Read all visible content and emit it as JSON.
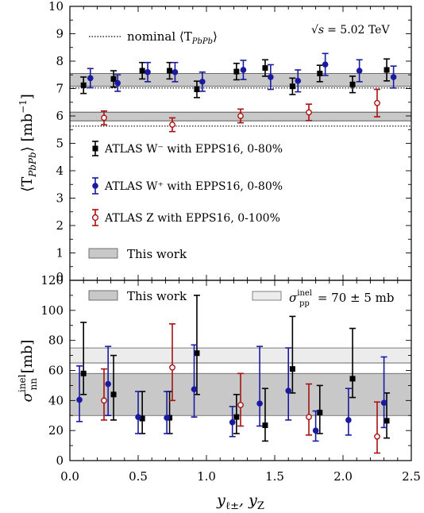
{
  "chart_data": [
    {
      "type": "scatter",
      "panel": "top",
      "ylabel": "⟨T_PbPb⟩ [mb⁻¹]",
      "ylim": [
        0,
        10
      ],
      "yticks": [
        0,
        1,
        2,
        3,
        4,
        5,
        6,
        7,
        8,
        9,
        10
      ],
      "xlim": [
        0,
        2.5
      ],
      "annotation": "√s = 5.02 TeV",
      "nominal": {
        "label": "nominal ⟨T_PbPb⟩",
        "band_value": 7.02,
        "line_value": 5.63
      },
      "bands": [
        {
          "label": "This work",
          "low": 7.08,
          "high": 7.55,
          "center": 7.32
        },
        {
          "label": "This work",
          "low": 5.82,
          "high": 6.14,
          "center": 5.98
        }
      ],
      "legend_placement": "left",
      "series": [
        {
          "name": "ATLAS W⁻ with EPPS16, 0-80%",
          "color": "#000000",
          "marker": "square",
          "x": [
            0.1,
            0.32,
            0.53,
            0.73,
            0.93,
            1.22,
            1.43,
            1.63,
            1.83,
            2.07,
            2.32
          ],
          "y": [
            7.12,
            7.35,
            7.65,
            7.65,
            6.97,
            7.62,
            7.75,
            7.08,
            7.55,
            7.15,
            7.68
          ],
          "err": [
            0.3,
            0.3,
            0.3,
            0.3,
            0.3,
            0.3,
            0.3,
            0.3,
            0.3,
            0.3,
            0.4
          ]
        },
        {
          "name": "ATLAS W⁺ with EPPS16, 0-80%",
          "color": "#1a1aa0",
          "marker": "circle",
          "x": [
            0.15,
            0.35,
            0.57,
            0.77,
            0.97,
            1.27,
            1.47,
            1.67,
            1.87,
            2.12,
            2.37
          ],
          "y": [
            7.38,
            7.2,
            7.6,
            7.6,
            7.25,
            7.68,
            7.42,
            7.28,
            7.88,
            7.65,
            7.42
          ],
          "err": [
            0.35,
            0.3,
            0.35,
            0.35,
            0.35,
            0.35,
            0.45,
            0.4,
            0.4,
            0.4,
            0.4
          ]
        },
        {
          "name": "ATLAS Z with EPPS16, 0-100%",
          "color": "#aa1111",
          "marker": "open-circle",
          "x": [
            0.25,
            0.75,
            1.25,
            1.75,
            2.25
          ],
          "y": [
            5.93,
            5.68,
            6.0,
            6.13,
            6.47
          ],
          "err": [
            0.25,
            0.25,
            0.25,
            0.3,
            0.5
          ]
        }
      ]
    },
    {
      "type": "scatter",
      "panel": "bottom",
      "ylabel": "σ_nn^inel [mb]",
      "xlabel": "y_ℓ±, y_Z",
      "ylim": [
        0,
        120
      ],
      "yticks": [
        0,
        20,
        40,
        60,
        80,
        100,
        120
      ],
      "xlim": [
        0,
        2.5
      ],
      "xticks": [
        0.0,
        0.5,
        1.0,
        1.5,
        2.0,
        2.5
      ],
      "bands": [
        {
          "label": "This work",
          "low": 30,
          "high": 58,
          "center": 44,
          "fill": "#c8c8c8"
        },
        {
          "label": "σ_pp^inel = 70 ± 5 mb",
          "low": 65,
          "high": 75,
          "center": 70,
          "fill": "#ececec"
        }
      ],
      "legend_placement": "top",
      "series": [
        {
          "name": "ATLAS W⁻ with EPPS16, 0-80%",
          "color": "#000000",
          "marker": "square",
          "x": [
            0.1,
            0.32,
            0.53,
            0.73,
            0.93,
            1.22,
            1.43,
            1.63,
            1.83,
            2.07,
            2.32
          ],
          "y": [
            58,
            44,
            28,
            28.5,
            71.5,
            29,
            23.5,
            61,
            32,
            54.5,
            26.5
          ],
          "lo": [
            44,
            27,
            18,
            18,
            44,
            18,
            13,
            45,
            18,
            42,
            15
          ],
          "hi": [
            92,
            70,
            46,
            46,
            110,
            44,
            48,
            96,
            50,
            88,
            45
          ]
        },
        {
          "name": "ATLAS W⁺ with EPPS16, 0-80%",
          "color": "#1a1aa0",
          "marker": "circle",
          "x": [
            0.07,
            0.28,
            0.5,
            0.71,
            0.91,
            1.19,
            1.39,
            1.6,
            1.8,
            2.04,
            2.3
          ],
          "y": [
            40.5,
            51,
            29,
            28.5,
            47.5,
            25.5,
            38,
            46.5,
            20,
            27,
            38.5
          ],
          "lo": [
            26,
            30,
            18,
            18,
            29,
            16,
            23,
            27,
            13,
            17,
            22
          ],
          "hi": [
            63,
            76,
            46,
            46,
            77,
            36,
            76,
            75,
            33,
            48,
            69
          ]
        },
        {
          "name": "ATLAS Z with EPPS16, 0-100%",
          "color": "#aa1111",
          "marker": "open-circle",
          "x": [
            0.25,
            0.75,
            1.25,
            1.75,
            2.25
          ],
          "y": [
            40,
            62,
            37,
            29,
            16
          ],
          "lo": [
            27,
            40,
            23,
            17,
            5
          ],
          "hi": [
            61,
            91,
            58,
            51,
            39
          ]
        }
      ]
    }
  ],
  "labels": {
    "nominal": "nominal ⟨T",
    "nominal_sub": "PbPb",
    "nominal_end": "⟩",
    "energy_sqrt": "√s",
    "energy_value": "= 5.02 TeV",
    "legend_wminus": "ATLAS W⁻ with EPPS16, 0-80%",
    "legend_wplus": "ATLAS W⁺ with EPPS16, 0-80%",
    "legend_z": "ATLAS Z with EPPS16, 0-100%",
    "legend_band": "This work",
    "bottom_band": "This work",
    "bottom_pp_sigma": "σ",
    "bottom_pp_sup": "inel",
    "bottom_pp_sub": "pp",
    "bottom_pp_value": "= 70 ± 5 mb",
    "ylabel_top_main": "⟨T",
    "ylabel_top_sub": "PbPb",
    "ylabel_top_end": "⟩ [mb",
    "ylabel_top_sup": "−1",
    "ylabel_top_close": "]",
    "ylabel_bottom_main": "σ",
    "ylabel_bottom_sup": "inel",
    "ylabel_bottom_sub": "nn",
    "ylabel_bottom_end": " [mb]",
    "xlabel_y1": "y",
    "xlabel_sub1": "ℓ±",
    "xlabel_sep": ", y",
    "xlabel_sub2": "Z"
  }
}
